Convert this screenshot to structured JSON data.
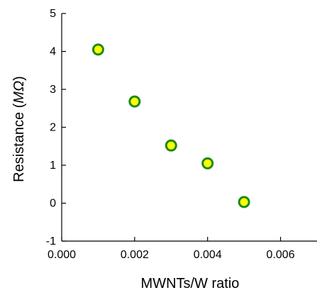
{
  "chart_data": {
    "type": "scatter",
    "title": "",
    "xlabel": "MWNTs/W ratio",
    "ylabel_text": "Resistance (",
    "ylabel_unit": "MΩ",
    "ylabel_close": ")",
    "xlim": [
      0.0,
      0.007
    ],
    "ylim": [
      -1,
      5
    ],
    "xticks": [
      0.0,
      0.002,
      0.004,
      0.006
    ],
    "xtick_labels": [
      "0.000",
      "0.002",
      "0.004",
      "0.006"
    ],
    "yticks": [
      -1,
      0,
      1,
      2,
      3,
      4,
      5
    ],
    "ytick_labels": [
      "-1",
      "0",
      "1",
      "2",
      "3",
      "4",
      "5"
    ],
    "grid": false,
    "marker_fill": "#ffff00",
    "marker_edge": "#1a8a1a",
    "series": [
      {
        "x": [
          0.001,
          0.002,
          0.003,
          0.004,
          0.005
        ],
        "y": [
          4.05,
          2.68,
          1.52,
          1.05,
          0.03
        ]
      }
    ]
  }
}
